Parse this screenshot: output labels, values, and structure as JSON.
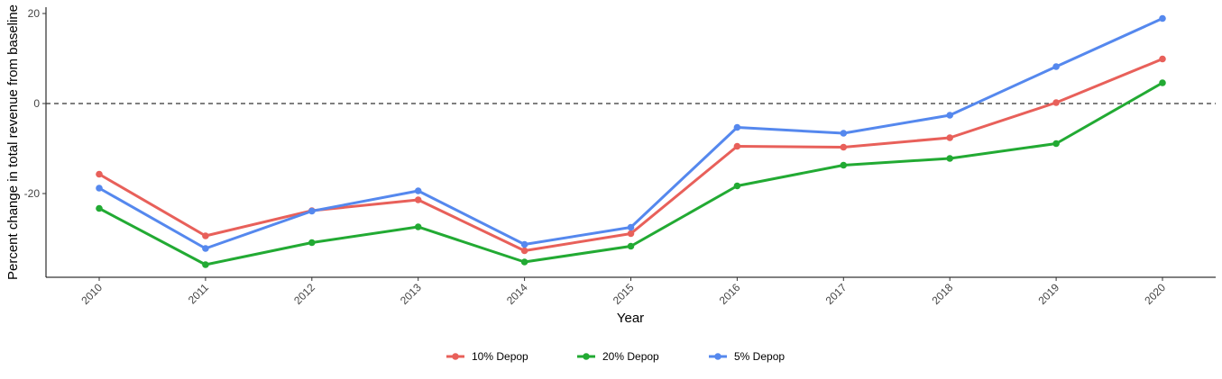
{
  "chart_data": {
    "type": "line",
    "title": "",
    "xlabel": "Year",
    "ylabel": "Percent change in total revenue from baseline",
    "x": [
      "2010",
      "2011",
      "2012",
      "2013",
      "2014",
      "2015",
      "2016",
      "2017",
      "2018",
      "2019",
      "2020"
    ],
    "ylim": [
      -38.5,
      21.3
    ],
    "yticks": [
      -20,
      0,
      20
    ],
    "reference_line": {
      "y": 0,
      "style": "dashed"
    },
    "grid": false,
    "legend_position": "bottom",
    "series": [
      {
        "name": "10% Depop",
        "color": "#E8605A",
        "values": [
          -15.7,
          -29.4,
          -23.8,
          -21.4,
          -32.7,
          -28.9,
          -9.5,
          -9.7,
          -7.6,
          0.2,
          9.9
        ]
      },
      {
        "name": "20% Depop",
        "color": "#22AA33",
        "values": [
          -23.3,
          -35.8,
          -30.9,
          -27.4,
          -35.2,
          -31.7,
          -18.3,
          -13.7,
          -12.2,
          -8.9,
          4.6
        ]
      },
      {
        "name": "5% Depop",
        "color": "#5588EE",
        "values": [
          -18.8,
          -32.2,
          -23.9,
          -19.4,
          -31.3,
          -27.5,
          -5.3,
          -6.6,
          -2.6,
          8.2,
          18.9
        ]
      }
    ]
  }
}
